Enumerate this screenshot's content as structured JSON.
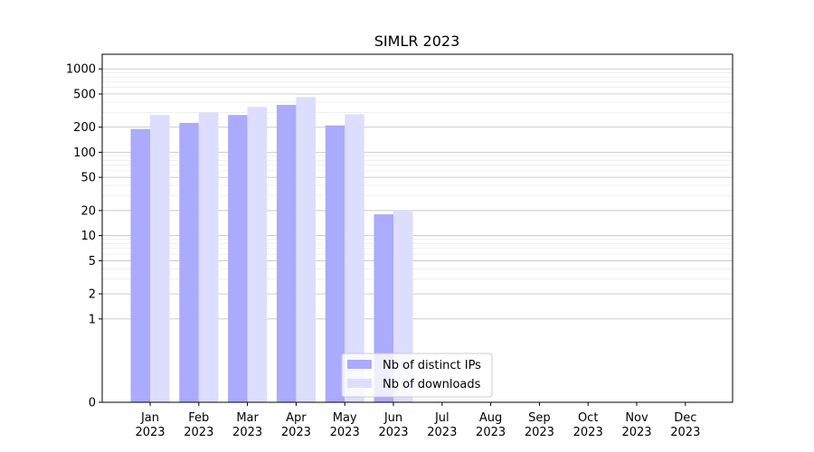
{
  "chart_data": {
    "type": "bar",
    "title": "SIMLR 2023",
    "xlabel": "",
    "ylabel": "",
    "y_scale": "symlog",
    "ylim": [
      0,
      1500
    ],
    "y_ticks": [
      0,
      1,
      2,
      5,
      10,
      20,
      50,
      100,
      200,
      500,
      1000
    ],
    "y_tick_labels": [
      "0",
      "1",
      "2",
      "5",
      "10",
      "20",
      "50",
      "100",
      "200",
      "500",
      "1000"
    ],
    "grid": "horizontal",
    "legend_position": "lower-center",
    "categories": [
      "Jan",
      "Feb",
      "Mar",
      "Apr",
      "May",
      "Jun",
      "Jul",
      "Aug",
      "Sep",
      "Oct",
      "Nov",
      "Dec"
    ],
    "category_years": [
      "2023",
      "2023",
      "2023",
      "2023",
      "2023",
      "2023",
      "2023",
      "2023",
      "2023",
      "2023",
      "2023",
      "2023"
    ],
    "series": [
      {
        "name": "Nb of distinct IPs",
        "color": "#aaaaff",
        "values": [
          190,
          225,
          280,
          370,
          210,
          18,
          null,
          null,
          null,
          null,
          null,
          null
        ]
      },
      {
        "name": "Nb of downloads",
        "color": "#ddddff",
        "values": [
          280,
          300,
          350,
          460,
          285,
          20,
          null,
          null,
          null,
          null,
          null,
          null
        ]
      }
    ]
  }
}
